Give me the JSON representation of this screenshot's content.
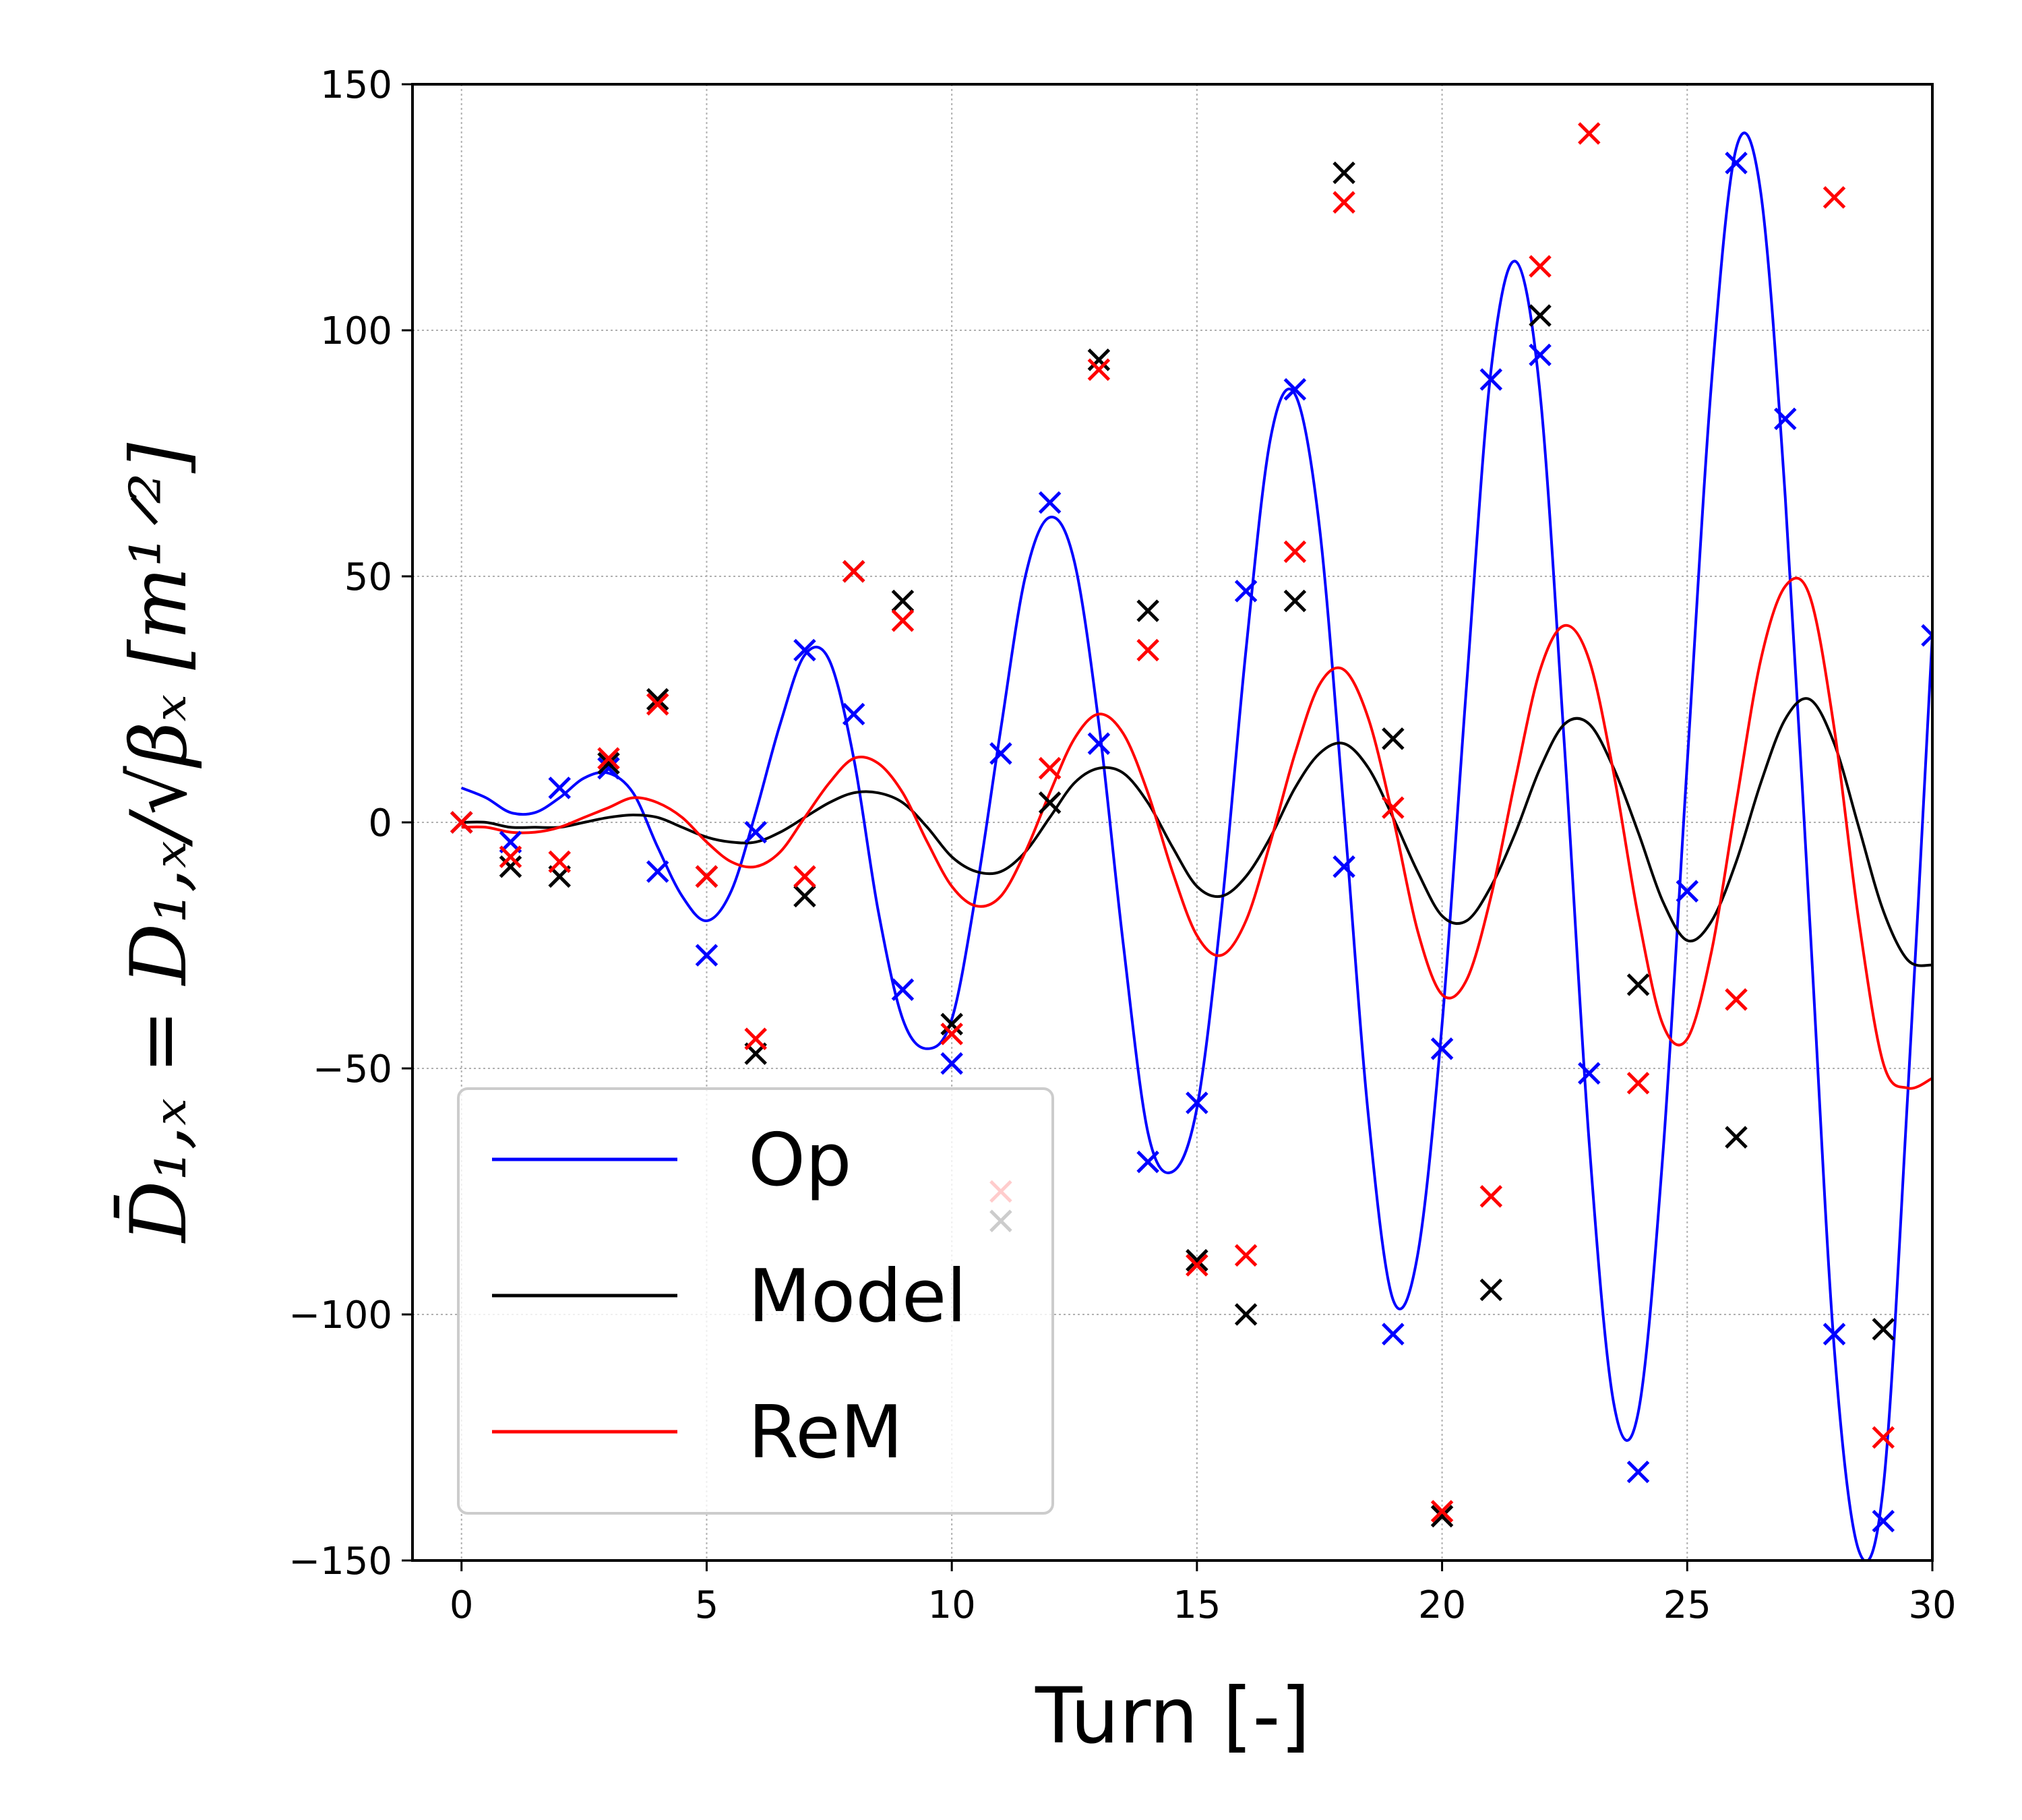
{
  "chart_data": {
    "type": "line",
    "xlabel": "Turn [-]",
    "ylabel": "D̄₁,ₓ = D₁,ₓ/√βₓ  [m¹ᐟ²]",
    "xlim": [
      -1,
      30
    ],
    "ylim": [
      -150,
      150
    ],
    "xticks": [
      0,
      5,
      10,
      15,
      20,
      25,
      30
    ],
    "yticks": [
      -150,
      -100,
      -50,
      0,
      50,
      100,
      150
    ],
    "xtick_labels": [
      "0",
      "5",
      "10",
      "15",
      "20",
      "25",
      "30"
    ],
    "ytick_labels": [
      "−150",
      "−100",
      "−50",
      "0",
      "50",
      "100",
      "150"
    ],
    "grid": true,
    "legend_position": "lower-left",
    "series": [
      {
        "name": "Op",
        "color": "#0000ff",
        "markers": [
          [
            0,
            0
          ],
          [
            1,
            -4
          ],
          [
            2,
            7
          ],
          [
            3,
            11
          ],
          [
            4,
            -10
          ],
          [
            5,
            -27
          ],
          [
            6,
            -2
          ],
          [
            7,
            35
          ],
          [
            8,
            22
          ],
          [
            9,
            -34
          ],
          [
            10,
            -49
          ],
          [
            11,
            14
          ],
          [
            12,
            65
          ],
          [
            13,
            16
          ],
          [
            14,
            -69
          ],
          [
            15,
            -57
          ],
          [
            16,
            47
          ],
          [
            17,
            88
          ],
          [
            18,
            -9
          ],
          [
            19,
            -104
          ],
          [
            20,
            -46
          ],
          [
            21,
            90
          ],
          [
            22,
            95
          ],
          [
            23,
            -51
          ],
          [
            24,
            -132
          ],
          [
            25,
            -14
          ],
          [
            26,
            134
          ],
          [
            27,
            82
          ],
          [
            28,
            -104
          ],
          [
            29,
            -142
          ],
          [
            30,
            38
          ]
        ],
        "curve": [
          [
            0,
            7
          ],
          [
            0.5,
            5
          ],
          [
            1,
            2
          ],
          [
            1.5,
            2
          ],
          [
            2,
            5
          ],
          [
            2.5,
            9
          ],
          [
            3,
            10
          ],
          [
            3.5,
            6
          ],
          [
            4,
            -5
          ],
          [
            4.5,
            -15
          ],
          [
            5,
            -20
          ],
          [
            5.5,
            -14
          ],
          [
            6,
            2
          ],
          [
            6.5,
            20
          ],
          [
            7,
            34
          ],
          [
            7.5,
            33
          ],
          [
            8,
            13
          ],
          [
            8.5,
            -18
          ],
          [
            9,
            -40
          ],
          [
            9.5,
            -46
          ],
          [
            10,
            -40
          ],
          [
            10.5,
            -14
          ],
          [
            11,
            19
          ],
          [
            11.5,
            50
          ],
          [
            12,
            62
          ],
          [
            12.5,
            53
          ],
          [
            13,
            20
          ],
          [
            13.5,
            -25
          ],
          [
            14,
            -63
          ],
          [
            14.5,
            -71
          ],
          [
            15,
            -58
          ],
          [
            15.5,
            -18
          ],
          [
            16,
            35
          ],
          [
            16.5,
            78
          ],
          [
            17,
            87
          ],
          [
            17.5,
            60
          ],
          [
            18,
            2
          ],
          [
            18.5,
            -60
          ],
          [
            19,
            -97
          ],
          [
            19.5,
            -88
          ],
          [
            20,
            -41
          ],
          [
            20.5,
            28
          ],
          [
            21,
            92
          ],
          [
            21.5,
            114
          ],
          [
            22,
            87
          ],
          [
            22.5,
            15
          ],
          [
            23,
            -65
          ],
          [
            23.5,
            -118
          ],
          [
            24,
            -120
          ],
          [
            24.5,
            -68
          ],
          [
            25,
            12
          ],
          [
            25.5,
            90
          ],
          [
            26,
            137
          ],
          [
            26.5,
            128
          ],
          [
            27,
            66
          ],
          [
            27.5,
            -20
          ],
          [
            28,
            -107
          ],
          [
            28.5,
            -148
          ],
          [
            29,
            -135
          ],
          [
            29.5,
            -55
          ],
          [
            30,
            38
          ]
        ]
      },
      {
        "name": "Model",
        "color": "#000000",
        "markers": [
          [
            0,
            0
          ],
          [
            1,
            -9
          ],
          [
            2,
            -11
          ],
          [
            3,
            12
          ],
          [
            4,
            25
          ],
          [
            5,
            -11
          ],
          [
            6,
            -47
          ],
          [
            7,
            -15
          ],
          [
            8,
            51
          ],
          [
            9,
            45
          ],
          [
            10,
            -41
          ],
          [
            11,
            -81
          ],
          [
            12,
            4
          ],
          [
            13,
            94
          ],
          [
            14,
            43
          ],
          [
            15,
            -89
          ],
          [
            16,
            -100
          ],
          [
            17,
            45
          ],
          [
            18,
            132
          ],
          [
            19,
            17
          ],
          [
            20,
            -141
          ],
          [
            21,
            -95
          ],
          [
            22,
            103
          ],
          [
            24,
            -33
          ],
          [
            26,
            -64
          ],
          [
            29,
            -103
          ]
        ],
        "curve": [
          [
            0,
            0
          ],
          [
            0.5,
            0
          ],
          [
            1,
            -1
          ],
          [
            1.5,
            -1
          ],
          [
            2,
            -1
          ],
          [
            2.5,
            0
          ],
          [
            3,
            1
          ],
          [
            3.5,
            1.5
          ],
          [
            4,
            1
          ],
          [
            4.5,
            -1
          ],
          [
            5,
            -3
          ],
          [
            5.5,
            -4
          ],
          [
            6,
            -4
          ],
          [
            6.5,
            -2
          ],
          [
            7,
            1
          ],
          [
            7.5,
            4
          ],
          [
            8,
            6
          ],
          [
            8.5,
            6
          ],
          [
            9,
            4
          ],
          [
            9.5,
            -1
          ],
          [
            10,
            -7
          ],
          [
            10.5,
            -10
          ],
          [
            11,
            -10
          ],
          [
            11.5,
            -6
          ],
          [
            12,
            1
          ],
          [
            12.5,
            8
          ],
          [
            13,
            11
          ],
          [
            13.5,
            10
          ],
          [
            14,
            4
          ],
          [
            14.5,
            -5
          ],
          [
            15,
            -13
          ],
          [
            15.5,
            -15
          ],
          [
            16,
            -11
          ],
          [
            16.5,
            -3
          ],
          [
            17,
            7
          ],
          [
            17.5,
            14
          ],
          [
            18,
            16
          ],
          [
            18.5,
            11
          ],
          [
            19,
            1
          ],
          [
            19.5,
            -10
          ],
          [
            20,
            -19
          ],
          [
            20.5,
            -20
          ],
          [
            21,
            -13
          ],
          [
            21.5,
            -2
          ],
          [
            22,
            11
          ],
          [
            22.5,
            20
          ],
          [
            23,
            20
          ],
          [
            23.5,
            11
          ],
          [
            24,
            -2
          ],
          [
            24.5,
            -16
          ],
          [
            25,
            -24
          ],
          [
            25.5,
            -20
          ],
          [
            26,
            -8
          ],
          [
            26.5,
            8
          ],
          [
            27,
            21
          ],
          [
            27.5,
            25
          ],
          [
            28,
            16
          ],
          [
            28.5,
            -1
          ],
          [
            29,
            -18
          ],
          [
            29.5,
            -28
          ],
          [
            30,
            -29
          ]
        ]
      },
      {
        "name": "ReM",
        "color": "#ff0000",
        "markers": [
          [
            0,
            0
          ],
          [
            1,
            -7
          ],
          [
            2,
            -8
          ],
          [
            3,
            13
          ],
          [
            4,
            24
          ],
          [
            5,
            -11
          ],
          [
            6,
            -44
          ],
          [
            7,
            -11
          ],
          [
            8,
            51
          ],
          [
            9,
            41
          ],
          [
            10,
            -43
          ],
          [
            11,
            -75
          ],
          [
            12,
            11
          ],
          [
            13,
            92
          ],
          [
            14,
            35
          ],
          [
            15,
            -90
          ],
          [
            16,
            -88
          ],
          [
            17,
            55
          ],
          [
            18,
            126
          ],
          [
            19,
            3
          ],
          [
            20,
            -140
          ],
          [
            21,
            -76
          ],
          [
            22,
            113
          ],
          [
            23,
            140
          ],
          [
            24,
            -53
          ],
          [
            26,
            -36
          ],
          [
            28,
            127
          ],
          [
            29,
            -125
          ]
        ],
        "curve": [
          [
            0,
            -1
          ],
          [
            0.5,
            -1
          ],
          [
            1,
            -2
          ],
          [
            1.5,
            -2
          ],
          [
            2,
            -1
          ],
          [
            2.5,
            1
          ],
          [
            3,
            3
          ],
          [
            3.5,
            5
          ],
          [
            4,
            4
          ],
          [
            4.5,
            1
          ],
          [
            5,
            -4
          ],
          [
            5.5,
            -8
          ],
          [
            6,
            -9
          ],
          [
            6.5,
            -6
          ],
          [
            7,
            1
          ],
          [
            7.5,
            8
          ],
          [
            8,
            13
          ],
          [
            8.5,
            12
          ],
          [
            9,
            6
          ],
          [
            9.5,
            -4
          ],
          [
            10,
            -13
          ],
          [
            10.5,
            -17
          ],
          [
            11,
            -15
          ],
          [
            11.5,
            -6
          ],
          [
            12,
            6
          ],
          [
            12.5,
            17
          ],
          [
            13,
            22
          ],
          [
            13.5,
            18
          ],
          [
            14,
            6
          ],
          [
            14.5,
            -10
          ],
          [
            15,
            -23
          ],
          [
            15.5,
            -27
          ],
          [
            16,
            -20
          ],
          [
            16.5,
            -4
          ],
          [
            17,
            14
          ],
          [
            17.5,
            28
          ],
          [
            18,
            31
          ],
          [
            18.5,
            21
          ],
          [
            19,
            1
          ],
          [
            19.5,
            -22
          ],
          [
            20,
            -35
          ],
          [
            20.5,
            -32
          ],
          [
            21,
            -15
          ],
          [
            21.5,
            9
          ],
          [
            22,
            31
          ],
          [
            22.5,
            40
          ],
          [
            23,
            33
          ],
          [
            23.5,
            10
          ],
          [
            24,
            -19
          ],
          [
            24.5,
            -41
          ],
          [
            25,
            -44
          ],
          [
            25.5,
            -26
          ],
          [
            26,
            4
          ],
          [
            26.5,
            33
          ],
          [
            27,
            48
          ],
          [
            27.5,
            46
          ],
          [
            28,
            19
          ],
          [
            28.5,
            -20
          ],
          [
            29,
            -49
          ],
          [
            29.5,
            -54
          ],
          [
            30,
            -52
          ]
        ]
      }
    ]
  }
}
